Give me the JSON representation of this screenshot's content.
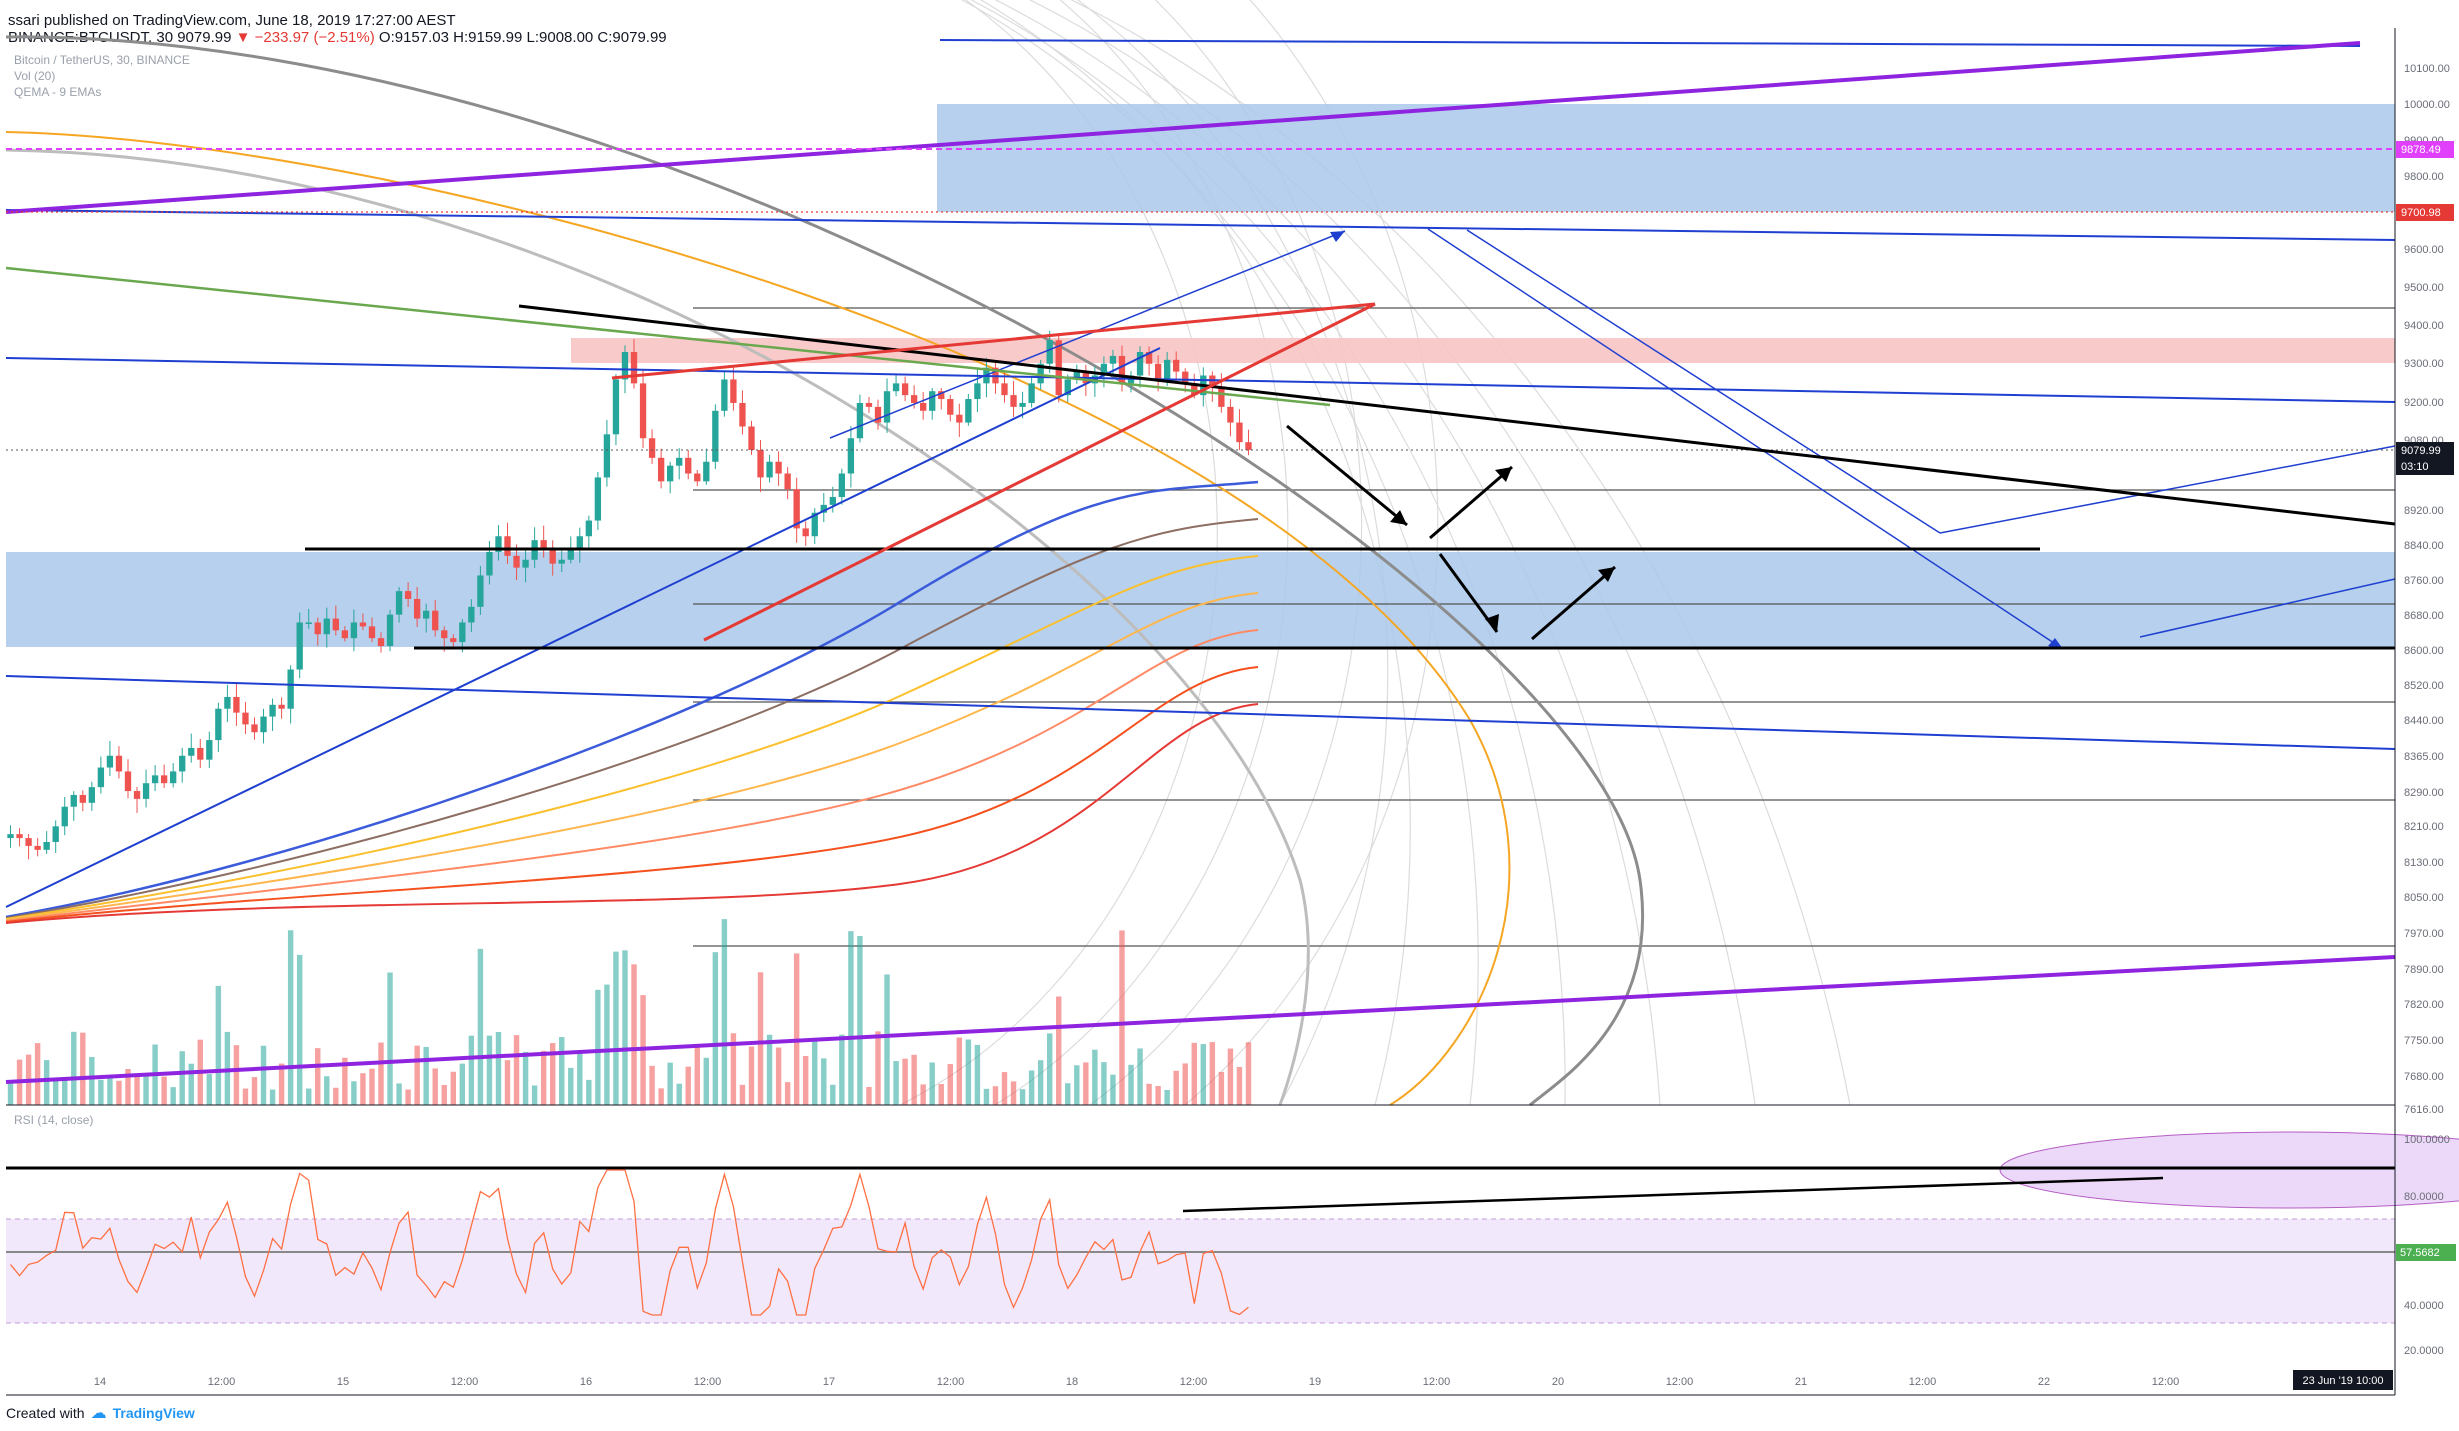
{
  "header": {
    "user": "ssari",
    "published_text": "published on TradingView.com, June 18, 2019 17:27:00 AEST",
    "symbol_line_prefix": "BINANCE:BTCUSDT, 30",
    "price": "9079.99",
    "change": "▼ −233.97 (−2.51%)",
    "ohlc": "O:9157.03 H:9159.99 L:9008.00 C:9079.99"
  },
  "legend": {
    "line1": "Bitcoin / TetherUS, 30, BINANCE",
    "line2": "Vol (20)",
    "line3": "QEMA - 9 EMAs"
  },
  "rsi": {
    "label": "RSI (14, close)",
    "value": "57.5682"
  },
  "footer": {
    "created_with": "Created with",
    "brand": "TradingView"
  },
  "colors": {
    "up": "#26a69a",
    "down": "#ef5350",
    "zone_blue": "#a9c8ea",
    "zone_red": "#f8c4c4",
    "purple": "#8e24e0",
    "magenta": "#e040fb",
    "red_tag": "#e53935",
    "blue_line": "#1f3fd0",
    "rsi_line": "#ff7043"
  },
  "chart_data": {
    "type": "candlestick",
    "symbol": "BTCUSDT",
    "exchange": "BINANCE",
    "interval": "30",
    "price_axis": [
      "10100.00",
      "10000.00",
      "9900.00",
      "9800.00",
      "9700.00",
      "9600.00",
      "9500.00",
      "9400.00",
      "9300.00",
      "9200.00",
      "9080.00",
      "9000.00",
      "8920.00",
      "8840.00",
      "8760.00",
      "8680.00",
      "8600.00",
      "8520.00",
      "8440.00",
      "8365.00",
      "8290.00",
      "8210.00",
      "8130.00",
      "8050.00",
      "7970.00",
      "7890.00",
      "7820.00",
      "7750.00",
      "7680.00",
      "7616.00"
    ],
    "time_axis": [
      "14",
      "12:00",
      "15",
      "12:00",
      "16",
      "12:00",
      "17",
      "12:00",
      "18",
      "12:00",
      "19",
      "12:00",
      "20",
      "12:00",
      "21",
      "12:00",
      "22",
      "12:00"
    ],
    "price_tags": [
      {
        "value": "9878.49",
        "color": "#e040fb"
      },
      {
        "value": "9700.98",
        "color": "#e53935"
      },
      {
        "value": "9079.99",
        "color": "#131722"
      },
      {
        "value": "03:10",
        "color": "#131722"
      }
    ],
    "rsi_axis": [
      "100.0000",
      "80.0000",
      "57.5682",
      "40.0000",
      "20.0000"
    ],
    "cursor_time": "23 Jun '19   10:00",
    "close_path": [
      8100,
      8090,
      8070,
      8060,
      8080,
      8120,
      8170,
      8200,
      8180,
      8220,
      8270,
      8300,
      8260,
      8210,
      8190,
      8230,
      8250,
      8230,
      8260,
      8300,
      8320,
      8290,
      8340,
      8420,
      8450,
      8410,
      8380,
      8360,
      8400,
      8430,
      8420,
      8520,
      8640,
      8640,
      8610,
      8650,
      8620,
      8600,
      8640,
      8630,
      8600,
      8580,
      8660,
      8720,
      8700,
      8650,
      8670,
      8620,
      8600,
      8590,
      8640,
      8680,
      8760,
      8820,
      8860,
      8810,
      8780,
      8800,
      8850,
      8830,
      8790,
      8800,
      8830,
      8860,
      8900,
      9010,
      9120,
      9260,
      9330,
      9250,
      9110,
      9060,
      9000,
      9040,
      9060,
      9020,
      9000,
      9050,
      9180,
      9260,
      9200,
      9140,
      9080,
      9010,
      9050,
      9020,
      8980,
      8880,
      8860,
      8920,
      8940,
      8960,
      9020,
      9110,
      9200,
      9190,
      9150,
      9230,
      9250,
      9220,
      9200,
      9180,
      9230,
      9210,
      9170,
      9150,
      9210,
      9250,
      9290,
      9250,
      9220,
      9190,
      9200,
      9250,
      9300,
      9360,
      9220,
      9260,
      9280,
      9250,
      9270,
      9300,
      9320,
      9250,
      9270,
      9330,
      9300,
      9260,
      9310,
      9280,
      9250,
      9220,
      9270,
      9240,
      9190,
      9150,
      9100,
      9080
    ]
  }
}
